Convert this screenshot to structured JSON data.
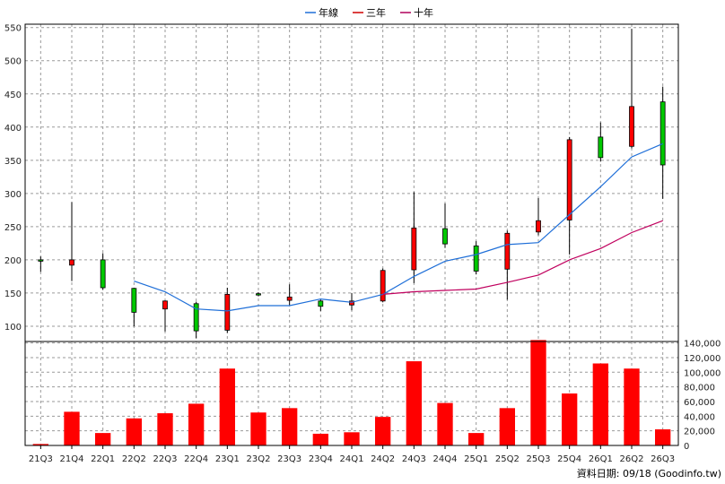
{
  "chart_data": {
    "type": "candlestick+line+bar",
    "legend": [
      {
        "name": "年線",
        "color": "#1f6fd8"
      },
      {
        "name": "三年",
        "color": "#d00000"
      },
      {
        "name": "十年",
        "color": "#b0005a"
      }
    ],
    "legend_position": "top-center",
    "grid": true,
    "categories": [
      "21Q3",
      "21Q4",
      "22Q1",
      "22Q2",
      "22Q3",
      "22Q4",
      "23Q1",
      "23Q2",
      "23Q3",
      "23Q4",
      "24Q1",
      "24Q2",
      "24Q3",
      "24Q4",
      "25Q1",
      "25Q2",
      "25Q3",
      "25Q4",
      "26Q1",
      "26Q2",
      "26Q3"
    ],
    "price_axis": {
      "ylim": [
        77,
        555
      ],
      "ticks": [
        100,
        150,
        200,
        250,
        300,
        350,
        400,
        450,
        500,
        550
      ]
    },
    "candles": [
      {
        "open": 200,
        "close": 198,
        "high": 205,
        "low": 182
      },
      {
        "open": 192,
        "close": 200,
        "high": 287,
        "low": 168
      },
      {
        "open": 200,
        "close": 158,
        "high": 210,
        "low": 155
      },
      {
        "open": 157,
        "close": 121,
        "high": 158,
        "low": 100
      },
      {
        "open": 126,
        "close": 138,
        "high": 139,
        "low": 92
      },
      {
        "open": 134,
        "close": 93,
        "high": 137,
        "low": 82
      },
      {
        "open": 94,
        "close": 148,
        "high": 158,
        "low": 90
      },
      {
        "open": 149,
        "close": 148,
        "high": 151,
        "low": 145
      },
      {
        "open": 139,
        "close": 144,
        "high": 163,
        "low": 132
      },
      {
        "open": 138,
        "close": 130,
        "high": 140,
        "low": 123
      },
      {
        "open": 132,
        "close": 138,
        "high": 150,
        "low": 124
      },
      {
        "open": 138,
        "close": 184,
        "high": 187,
        "low": 136
      },
      {
        "open": 185,
        "close": 248,
        "high": 302,
        "low": 165
      },
      {
        "open": 247,
        "close": 224,
        "high": 285,
        "low": 218
      },
      {
        "open": 221,
        "close": 183,
        "high": 228,
        "low": 178
      },
      {
        "open": 186,
        "close": 240,
        "high": 244,
        "low": 140
      },
      {
        "open": 242,
        "close": 259,
        "high": 293,
        "low": 237
      },
      {
        "open": 260,
        "close": 381,
        "high": 385,
        "low": 208
      },
      {
        "open": 385,
        "close": 354,
        "high": 407,
        "low": 348
      },
      {
        "open": 371,
        "close": 431,
        "high": 548,
        "low": 368
      },
      {
        "open": 438,
        "close": 343,
        "high": 461,
        "low": 292
      }
    ],
    "lines": [
      {
        "name": "年線",
        "color": "#1f6fd8",
        "start_index": 3,
        "values": [
          168,
          152,
          126,
          123,
          131,
          131,
          141,
          136,
          148,
          175,
          198,
          208,
          223,
          226,
          268,
          310,
          355,
          375
        ]
      },
      {
        "name": "十年",
        "color": "#c0005e",
        "start_index": 11,
        "values": [
          148,
          152,
          154,
          156,
          166,
          177,
          200,
          217,
          241,
          259
        ]
      }
    ],
    "volume_axis": {
      "ylim": [
        0,
        142000
      ],
      "ticks": [
        "0",
        "20,000",
        "40,000",
        "60,000",
        "80,000",
        "100,000",
        "120,000",
        "140,000"
      ],
      "tick_values": [
        0,
        20000,
        40000,
        60000,
        80000,
        100000,
        120000,
        140000
      ]
    },
    "volume": [
      2000,
      46000,
      17000,
      37000,
      44000,
      57000,
      105000,
      45000,
      51000,
      16000,
      18000,
      39000,
      115000,
      58000,
      17000,
      51000,
      144000,
      71000,
      112000,
      105000,
      22000
    ],
    "volume_color": "#ff0000"
  },
  "source_label": "資料日期: 09/18 (Goodinfo.tw)"
}
